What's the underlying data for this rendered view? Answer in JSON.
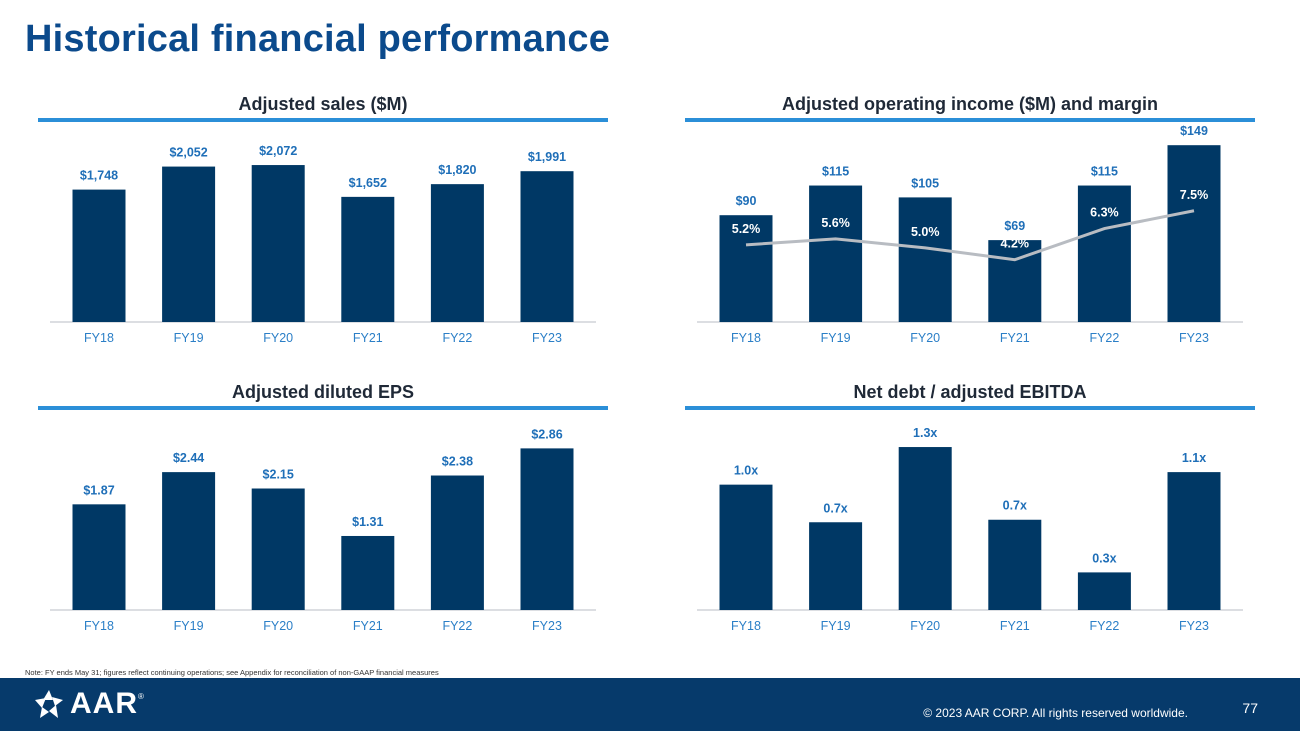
{
  "page": {
    "title": "Historical financial performance",
    "note": "Note: FY ends May 31; figures reflect continuing operations; see Appendix for reconciliation of non-GAAP financial measures",
    "copyright": "© 2023 AAR CORP. All rights reserved worldwide.",
    "page_number": "77",
    "logo_text": "AAR",
    "logo_mark": "®"
  },
  "colors": {
    "bar": "#003865",
    "bar_label": "#1f6fb8",
    "line": "#b8bcc2",
    "inbar_label": "#ffffff",
    "tick": "#2b7fc7",
    "axis": "#d0d4d9"
  },
  "chart_data": [
    {
      "id": "sales",
      "type": "bar",
      "title": "Adjusted sales ($M)",
      "categories": [
        "FY18",
        "FY19",
        "FY20",
        "FY21",
        "FY22",
        "FY23"
      ],
      "values": [
        1748,
        2052,
        2072,
        1652,
        1820,
        1991
      ],
      "labels": [
        "$1,748",
        "$2,052",
        "$2,072",
        "$1,652",
        "$1,820",
        "$1,991"
      ],
      "ylim": [
        0,
        2350
      ]
    },
    {
      "id": "opinc",
      "type": "bar",
      "title": "Adjusted operating income ($M) and margin",
      "categories": [
        "FY18",
        "FY19",
        "FY20",
        "FY21",
        "FY22",
        "FY23"
      ],
      "values": [
        90,
        115,
        105,
        69,
        115,
        149
      ],
      "labels": [
        "$90",
        "$115",
        "$105",
        "$69",
        "$115",
        "$149"
      ],
      "ylim": [
        0,
        150
      ],
      "line_series": {
        "name": "margin",
        "values": [
          5.2,
          5.6,
          5.0,
          4.2,
          6.3,
          7.5
        ],
        "labels": [
          "5.2%",
          "5.6%",
          "5.0%",
          "4.2%",
          "6.3%",
          "7.5%"
        ],
        "ylim": [
          0,
          12
        ]
      }
    },
    {
      "id": "eps",
      "type": "bar",
      "title": "Adjusted diluted EPS",
      "categories": [
        "FY18",
        "FY19",
        "FY20",
        "FY21",
        "FY22",
        "FY23"
      ],
      "values": [
        1.87,
        2.44,
        2.15,
        1.31,
        2.38,
        2.86
      ],
      "labels": [
        "$1.87",
        "$2.44",
        "$2.15",
        "$1.31",
        "$2.38",
        "$2.86"
      ],
      "ylim": [
        0,
        3.15
      ]
    },
    {
      "id": "debt",
      "type": "bar",
      "title": "Net debt / adjusted EBITDA",
      "categories": [
        "FY18",
        "FY19",
        "FY20",
        "FY21",
        "FY22",
        "FY23"
      ],
      "values": [
        1.0,
        0.7,
        1.3,
        0.72,
        0.3,
        1.1
      ],
      "labels": [
        "1.0x",
        "0.7x",
        "1.3x",
        "0.7x",
        "0.3x",
        "1.1x"
      ],
      "ylim": [
        0,
        1.42
      ]
    }
  ]
}
